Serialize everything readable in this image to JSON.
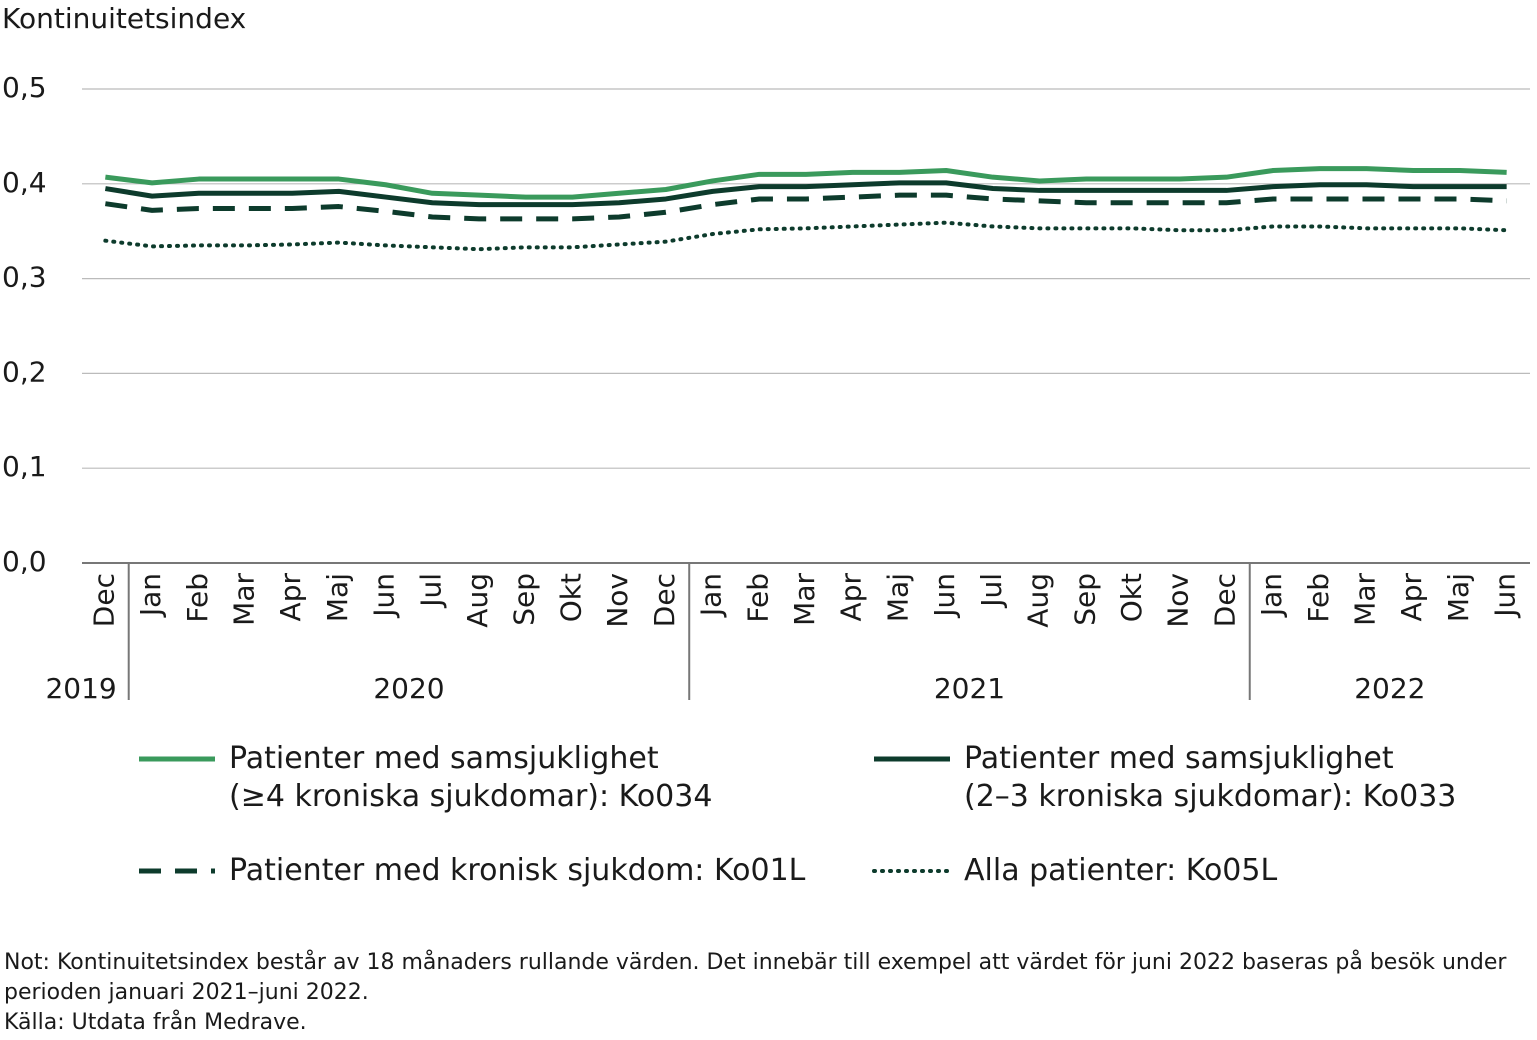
{
  "chart_data": {
    "type": "line",
    "ylabel": "Kontinuitetsindex",
    "categories": [
      "Dec",
      "Jan",
      "Feb",
      "Mar",
      "Apr",
      "Maj",
      "Jun",
      "Jul",
      "Aug",
      "Sep",
      "Okt",
      "Nov",
      "Dec",
      "Jan",
      "Feb",
      "Mar",
      "Apr",
      "Maj",
      "Jun",
      "Jul",
      "Aug",
      "Sep",
      "Okt",
      "Nov",
      "Dec",
      "Jan",
      "Feb",
      "Mar",
      "Apr",
      "Maj",
      "Jun"
    ],
    "groups": [
      {
        "label": "2019",
        "size": 1
      },
      {
        "label": "2020",
        "size": 12
      },
      {
        "label": "2021",
        "size": 12
      },
      {
        "label": "2022",
        "size": 6
      }
    ],
    "series": [
      {
        "name": "Patienter med samsjuklighet\n(≥4 kroniska sjukdomar): Ko034",
        "color": "#3a9a5c",
        "style": "solid",
        "values": [
          0.407,
          0.401,
          0.405,
          0.405,
          0.405,
          0.405,
          0.399,
          0.39,
          0.388,
          0.386,
          0.386,
          0.39,
          0.394,
          0.403,
          0.41,
          0.41,
          0.412,
          0.412,
          0.414,
          0.407,
          0.403,
          0.405,
          0.405,
          0.405,
          0.407,
          0.414,
          0.416,
          0.416,
          0.414,
          0.414,
          0.412
        ]
      },
      {
        "name": "Patienter med samsjuklighet\n(2–3 kroniska sjukdomar): Ko033",
        "color": "#0d3b2c",
        "style": "solid",
        "values": [
          0.395,
          0.387,
          0.39,
          0.39,
          0.39,
          0.392,
          0.386,
          0.38,
          0.378,
          0.378,
          0.378,
          0.38,
          0.384,
          0.392,
          0.397,
          0.397,
          0.399,
          0.401,
          0.401,
          0.395,
          0.393,
          0.393,
          0.393,
          0.393,
          0.393,
          0.397,
          0.399,
          0.399,
          0.397,
          0.397,
          0.397
        ]
      },
      {
        "name": "Patienter med kronisk sjukdom: Ko01L",
        "color": "#0d3b2c",
        "style": "dashed",
        "values": [
          0.379,
          0.372,
          0.374,
          0.374,
          0.374,
          0.376,
          0.371,
          0.365,
          0.363,
          0.363,
          0.363,
          0.365,
          0.37,
          0.378,
          0.384,
          0.384,
          0.386,
          0.388,
          0.388,
          0.384,
          0.382,
          0.38,
          0.38,
          0.38,
          0.38,
          0.384,
          0.384,
          0.384,
          0.384,
          0.384,
          0.382
        ]
      },
      {
        "name": "Alla patienter: Ko05L",
        "color": "#0d3b2c",
        "style": "dotted",
        "values": [
          0.34,
          0.334,
          0.335,
          0.335,
          0.336,
          0.338,
          0.335,
          0.333,
          0.331,
          0.333,
          0.333,
          0.336,
          0.339,
          0.347,
          0.352,
          0.353,
          0.355,
          0.357,
          0.359,
          0.355,
          0.353,
          0.353,
          0.353,
          0.351,
          0.351,
          0.355,
          0.355,
          0.353,
          0.353,
          0.353,
          0.351
        ]
      }
    ],
    "ylim": [
      0,
      0.5
    ],
    "yticks": [
      {
        "value": 0,
        "label": "0,0"
      },
      {
        "value": 0.1,
        "label": "0,1"
      },
      {
        "value": 0.2,
        "label": "0,2"
      },
      {
        "value": 0.3,
        "label": "0,3"
      },
      {
        "value": 0.4,
        "label": "0,4"
      },
      {
        "value": 0.5,
        "label": "0,5"
      }
    ],
    "grid": true,
    "notes": [
      "Not: Kontinuitetsindex består av 18 månaders rullande värden. Det innebär till exempel att värdet för juni 2022 baseras på besök under perioden januari 2021–juni 2022.",
      "Källa: Utdata från Medrave."
    ]
  }
}
